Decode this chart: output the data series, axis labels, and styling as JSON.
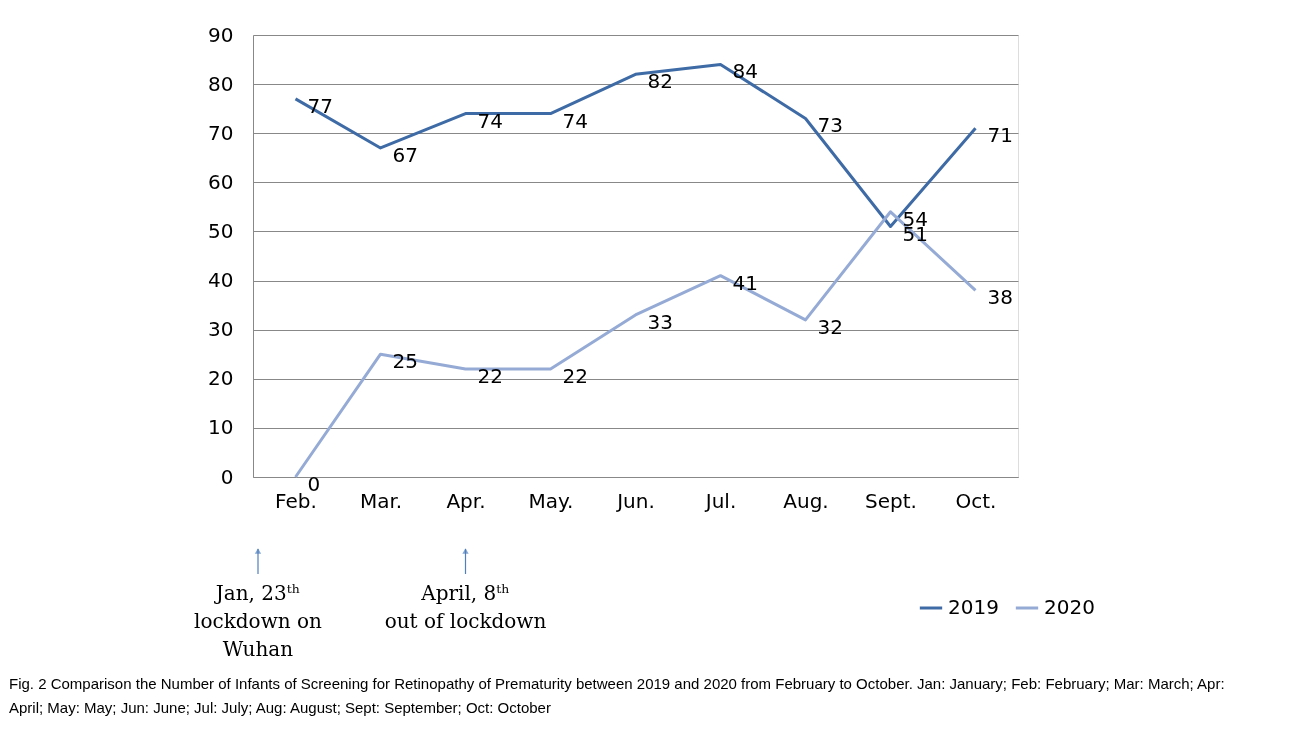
{
  "chart_data": {
    "type": "line",
    "categories": [
      "Feb.",
      "Mar.",
      "Apr.",
      "May.",
      "Jun.",
      "Jul.",
      "Aug.",
      "Sept.",
      "Oct."
    ],
    "series": [
      {
        "name": "2019",
        "color": "#3e6ba5",
        "values": [
          77,
          67,
          74,
          74,
          82,
          84,
          73,
          51,
          71
        ]
      },
      {
        "name": "2020",
        "color": "#95abd5",
        "values": [
          0,
          25,
          22,
          22,
          33,
          41,
          32,
          54,
          38
        ]
      }
    ],
    "ylim": [
      0,
      90
    ],
    "yticks": [
      0,
      10,
      20,
      30,
      40,
      50,
      60,
      70,
      80,
      90
    ],
    "grid": "y",
    "legend": "bottom right",
    "data_labels": true,
    "marker": "none",
    "line_style": "solid",
    "annotations": [
      "Jan, 23ᵗʰ\nlockdown on\nWuhan",
      "April, 8ᵗʰ\nout of lockdown",
      "Fig. 2 Comparison the Number of Infants of Screening for Retinopathy of Prematurity between 2019 and 2020 from February to October. Jan: January; Feb: February; Mar: March; Apr: April; May: May; Jun: June; Jul: July; Aug: August; Sept: September; Oct: October"
    ]
  }
}
